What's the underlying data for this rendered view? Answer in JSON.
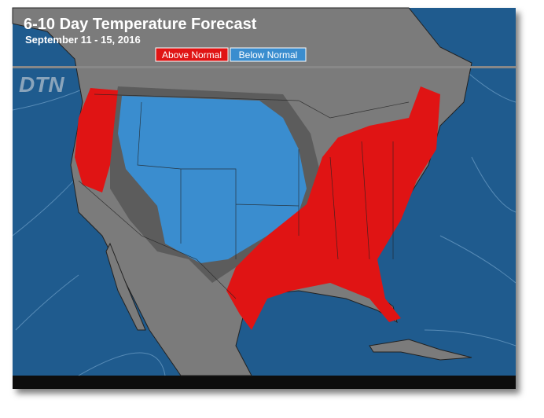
{
  "header": {
    "title": "6-10 Day Temperature Forecast",
    "subtitle": "September 11 - 15, 2016"
  },
  "legend": [
    {
      "label": "Above Normal",
      "color": "#e01414"
    },
    {
      "label": "Below Normal",
      "color": "#3a8dcf"
    }
  ],
  "logo": "DTN"
}
